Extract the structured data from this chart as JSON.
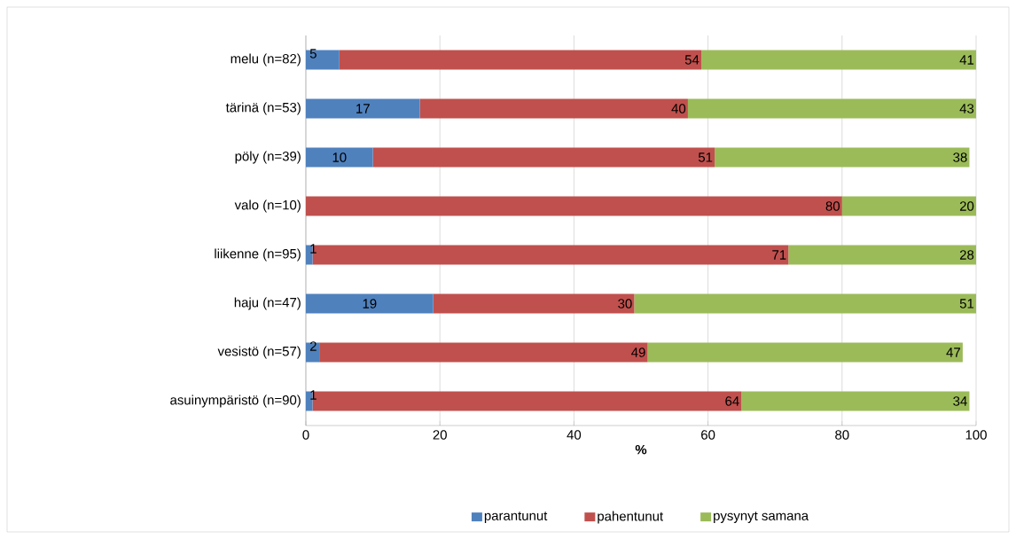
{
  "chart_data": {
    "type": "bar",
    "orientation": "horizontal",
    "stacked": true,
    "xlabel": "%",
    "categories": [
      "melu (n=82)",
      "tärinä (n=53)",
      "pöly (n=39)",
      "valo (n=10)",
      "liikenne (n=95)",
      "haju (n=47)",
      "vesistö (n=57)",
      "asuinympäristö (n=90)"
    ],
    "series": [
      {
        "name": "parantunut",
        "color": "#4f81bd",
        "values": [
          5,
          17,
          10,
          0,
          1,
          19,
          2,
          1
        ],
        "value_labels": [
          "5",
          "17",
          "10",
          null,
          "1",
          "19",
          "2",
          "1"
        ]
      },
      {
        "name": "pahentunut",
        "color": "#c0504d",
        "values": [
          54,
          40,
          51,
          80,
          71,
          30,
          49,
          64
        ],
        "value_labels": [
          "54",
          "40",
          "51",
          "80",
          "71",
          "30",
          "49",
          "64"
        ]
      },
      {
        "name": "pysynyt samana",
        "color": "#9bbb59",
        "values": [
          41,
          43,
          38,
          20,
          28,
          51,
          47,
          34
        ],
        "value_labels": [
          "41",
          "43",
          "38",
          "20",
          "28",
          "51",
          "47",
          "34"
        ]
      }
    ],
    "xlim": [
      0,
      100
    ],
    "xticks": [
      0,
      20,
      40,
      60,
      80,
      100
    ],
    "grid": "x",
    "legend": "bottom"
  }
}
